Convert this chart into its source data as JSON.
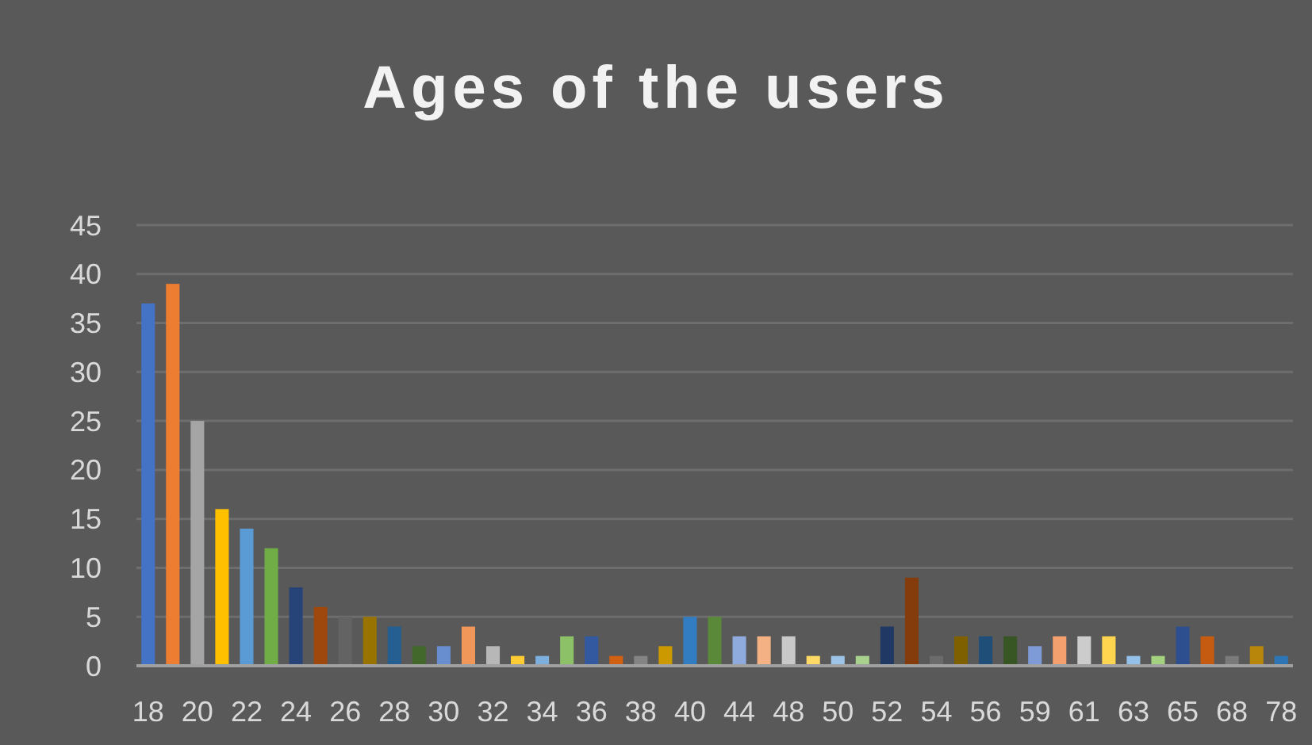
{
  "chart_data": {
    "type": "bar",
    "title": "Ages of the users",
    "categories": [
      "18",
      null,
      "20",
      null,
      "22",
      null,
      "24",
      null,
      "26",
      null,
      "28",
      null,
      "30",
      null,
      "32",
      null,
      "34",
      null,
      "36",
      null,
      "38",
      null,
      "40",
      null,
      "44",
      null,
      "48",
      null,
      "50",
      null,
      "52",
      null,
      "54",
      null,
      "56",
      null,
      "59",
      null,
      "61",
      null,
      "63",
      null,
      "65",
      null,
      "68",
      null,
      "78"
    ],
    "values": [
      37,
      39,
      25,
      16,
      14,
      12,
      8,
      6,
      5,
      5,
      4,
      2,
      2,
      4,
      2,
      1,
      1,
      3,
      3,
      1,
      1,
      2,
      5,
      5,
      3,
      3,
      3,
      1,
      1,
      1,
      4,
      9,
      1,
      3,
      3,
      3,
      2,
      3,
      3,
      3,
      1,
      1,
      4,
      3,
      1,
      2,
      1
    ],
    "colors": [
      "#4472c4",
      "#ed7d31",
      "#a5a5a5",
      "#ffc000",
      "#5b9bd5",
      "#70ad47",
      "#264478",
      "#9e480e",
      "#636363",
      "#997300",
      "#255e91",
      "#43682b",
      "#698ed0",
      "#f1975a",
      "#b7b7b7",
      "#ffcd33",
      "#7cafdd",
      "#8cc168",
      "#335aa1",
      "#d26012",
      "#848484",
      "#cc9a00",
      "#327dc2",
      "#5a8a39",
      "#8faadc",
      "#f4b183",
      "#c9c9c9",
      "#ffd966",
      "#9dc3e6",
      "#a9d18e",
      "#1f3864",
      "#843c0c",
      "#6b6b6b",
      "#7f6000",
      "#1f4e79",
      "#375623",
      "#7e9bd8",
      "#f4a06e",
      "#cccccc",
      "#ffd54f",
      "#93c1ea",
      "#a3d17f",
      "#2e4f8f",
      "#c55a11",
      "#7a7a7a",
      "#b8860b",
      "#2e75b6"
    ],
    "ylim": [
      0,
      45
    ],
    "yticks": [
      0,
      5,
      10,
      15,
      20,
      25,
      30,
      35,
      40,
      45
    ],
    "grid": "y"
  }
}
